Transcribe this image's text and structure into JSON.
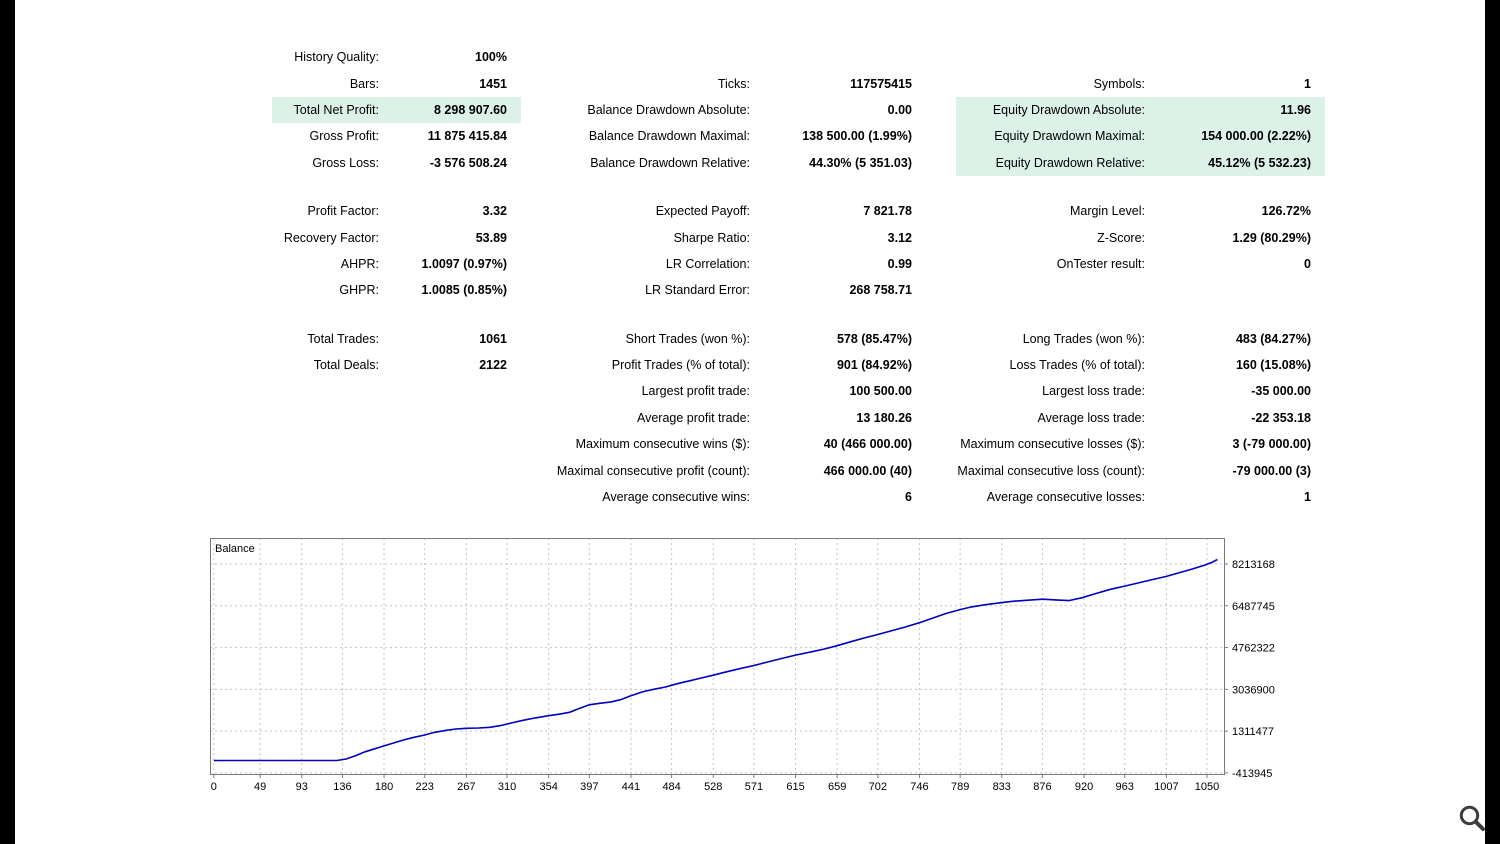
{
  "colors": {
    "highlight": "#dcf2e8",
    "edge_bars": "#000000",
    "line": "#0000c0"
  },
  "stats": {
    "rows": [
      {
        "cells": [
          {
            "label": "History Quality:",
            "value": "100%"
          },
          null,
          null
        ]
      },
      {
        "cells": [
          {
            "label": "Bars:",
            "value": "1451"
          },
          {
            "label": "Ticks:",
            "value": "117575415"
          },
          {
            "label": "Symbols:",
            "value": "1"
          }
        ]
      },
      {
        "cells": [
          {
            "label": "Total Net Profit:",
            "value": "8 298 907.60",
            "highlight": true
          },
          {
            "label": "Balance Drawdown Absolute:",
            "value": "0.00"
          },
          {
            "label": "Equity Drawdown Absolute:",
            "value": "11.96",
            "highlight": true
          }
        ]
      },
      {
        "cells": [
          {
            "label": "Gross Profit:",
            "value": "11 875 415.84"
          },
          {
            "label": "Balance Drawdown Maximal:",
            "value": "138 500.00 (1.99%)"
          },
          {
            "label": "Equity Drawdown Maximal:",
            "value": "154 000.00 (2.22%)",
            "highlight": true
          }
        ]
      },
      {
        "cells": [
          {
            "label": "Gross Loss:",
            "value": "-3 576 508.24"
          },
          {
            "label": "Balance Drawdown Relative:",
            "value": "44.30% (5 351.03)"
          },
          {
            "label": "Equity Drawdown Relative:",
            "value": "45.12% (5 532.23)",
            "highlight": true
          }
        ]
      },
      {
        "gap": true
      },
      {
        "cells": [
          {
            "label": "Profit Factor:",
            "value": "3.32"
          },
          {
            "label": "Expected Payoff:",
            "value": "7 821.78"
          },
          {
            "label": "Margin Level:",
            "value": "126.72%"
          }
        ]
      },
      {
        "cells": [
          {
            "label": "Recovery Factor:",
            "value": "53.89"
          },
          {
            "label": "Sharpe Ratio:",
            "value": "3.12"
          },
          {
            "label": "Z-Score:",
            "value": "1.29 (80.29%)"
          }
        ]
      },
      {
        "cells": [
          {
            "label": "AHPR:",
            "value": "1.0097 (0.97%)"
          },
          {
            "label": "LR Correlation:",
            "value": "0.99"
          },
          {
            "label": "OnTester result:",
            "value": "0"
          }
        ]
      },
      {
        "cells": [
          {
            "label": "GHPR:",
            "value": "1.0085 (0.85%)"
          },
          {
            "label": "LR Standard Error:",
            "value": "268 758.71"
          },
          null
        ]
      },
      {
        "gap": true
      },
      {
        "cells": [
          {
            "label": "Total Trades:",
            "value": "1061"
          },
          {
            "label": "Short Trades (won %):",
            "value": "578 (85.47%)"
          },
          {
            "label": "Long Trades (won %):",
            "value": "483 (84.27%)"
          }
        ]
      },
      {
        "cells": [
          {
            "label": "Total Deals:",
            "value": "2122"
          },
          {
            "label": "Profit Trades (% of total):",
            "value": "901 (84.92%)"
          },
          {
            "label": "Loss Trades (% of total):",
            "value": "160 (15.08%)"
          }
        ]
      },
      {
        "cells": [
          null,
          {
            "label": "Largest profit trade:",
            "value": "100 500.00"
          },
          {
            "label": "Largest loss trade:",
            "value": "-35 000.00"
          }
        ]
      },
      {
        "cells": [
          null,
          {
            "label": "Average profit trade:",
            "value": "13 180.26"
          },
          {
            "label": "Average loss trade:",
            "value": "-22 353.18"
          }
        ]
      },
      {
        "cells": [
          null,
          {
            "label": "Maximum consecutive wins ($):",
            "value": "40 (466 000.00)"
          },
          {
            "label": "Maximum consecutive losses ($):",
            "value": "3 (-79 000.00)"
          }
        ]
      },
      {
        "cells": [
          null,
          {
            "label": "Maximal consecutive profit (count):",
            "value": "466 000.00 (40)"
          },
          {
            "label": "Maximal consecutive loss (count):",
            "value": "-79 000.00 (3)"
          }
        ]
      },
      {
        "cells": [
          null,
          {
            "label": "Average consecutive wins:",
            "value": "6"
          },
          {
            "label": "Average consecutive losses:",
            "value": "1"
          }
        ]
      }
    ]
  },
  "chart_data": {
    "type": "line",
    "title": "Balance",
    "xlabel": "",
    "ylabel": "",
    "grid": "dashed",
    "legend_position": "none",
    "xlim": [
      -4,
      1069
    ],
    "ylim": [
      -500000,
      9287000
    ],
    "x_ticks": [
      0,
      49,
      93,
      136,
      180,
      223,
      267,
      310,
      354,
      397,
      441,
      484,
      528,
      571,
      615,
      659,
      702,
      746,
      789,
      833,
      876,
      920,
      963,
      1007,
      1050
    ],
    "y_ticks": [
      8213168,
      6487745,
      4762322,
      3036900,
      1311477,
      -413945
    ],
    "series": [
      {
        "name": "Balance",
        "color": "#0000c0",
        "points": [
          [
            0,
            100000
          ],
          [
            40,
            100000
          ],
          [
            80,
            100000
          ],
          [
            110,
            100000
          ],
          [
            130,
            100000
          ],
          [
            140,
            160000
          ],
          [
            150,
            300000
          ],
          [
            160,
            460000
          ],
          [
            170,
            580000
          ],
          [
            180,
            700000
          ],
          [
            190,
            820000
          ],
          [
            200,
            940000
          ],
          [
            210,
            1040000
          ],
          [
            223,
            1150000
          ],
          [
            233,
            1260000
          ],
          [
            245,
            1340000
          ],
          [
            256,
            1400000
          ],
          [
            267,
            1430000
          ],
          [
            280,
            1440000
          ],
          [
            292,
            1470000
          ],
          [
            303,
            1540000
          ],
          [
            315,
            1650000
          ],
          [
            327,
            1760000
          ],
          [
            340,
            1860000
          ],
          [
            354,
            1950000
          ],
          [
            365,
            2010000
          ],
          [
            376,
            2090000
          ],
          [
            386,
            2240000
          ],
          [
            397,
            2400000
          ],
          [
            408,
            2460000
          ],
          [
            420,
            2520000
          ],
          [
            430,
            2610000
          ],
          [
            441,
            2770000
          ],
          [
            453,
            2930000
          ],
          [
            465,
            3040000
          ],
          [
            477,
            3130000
          ],
          [
            490,
            3270000
          ],
          [
            503,
            3390000
          ],
          [
            516,
            3510000
          ],
          [
            528,
            3620000
          ],
          [
            542,
            3760000
          ],
          [
            556,
            3890000
          ],
          [
            571,
            4020000
          ],
          [
            584,
            4150000
          ],
          [
            598,
            4290000
          ],
          [
            615,
            4450000
          ],
          [
            630,
            4570000
          ],
          [
            645,
            4700000
          ],
          [
            659,
            4840000
          ],
          [
            673,
            5000000
          ],
          [
            688,
            5160000
          ],
          [
            702,
            5300000
          ],
          [
            716,
            5450000
          ],
          [
            731,
            5610000
          ],
          [
            746,
            5790000
          ],
          [
            760,
            5980000
          ],
          [
            774,
            6170000
          ],
          [
            789,
            6330000
          ],
          [
            801,
            6440000
          ],
          [
            815,
            6530000
          ],
          [
            833,
            6620000
          ],
          [
            847,
            6680000
          ],
          [
            861,
            6720000
          ],
          [
            876,
            6760000
          ],
          [
            890,
            6730000
          ],
          [
            904,
            6700000
          ],
          [
            918,
            6820000
          ],
          [
            933,
            7000000
          ],
          [
            948,
            7170000
          ],
          [
            963,
            7300000
          ],
          [
            977,
            7430000
          ],
          [
            992,
            7570000
          ],
          [
            1007,
            7700000
          ],
          [
            1021,
            7860000
          ],
          [
            1035,
            8010000
          ],
          [
            1048,
            8170000
          ],
          [
            1055,
            8280000
          ],
          [
            1061,
            8400000
          ]
        ]
      }
    ]
  },
  "zoom_control": {
    "icon": "magnifier"
  }
}
